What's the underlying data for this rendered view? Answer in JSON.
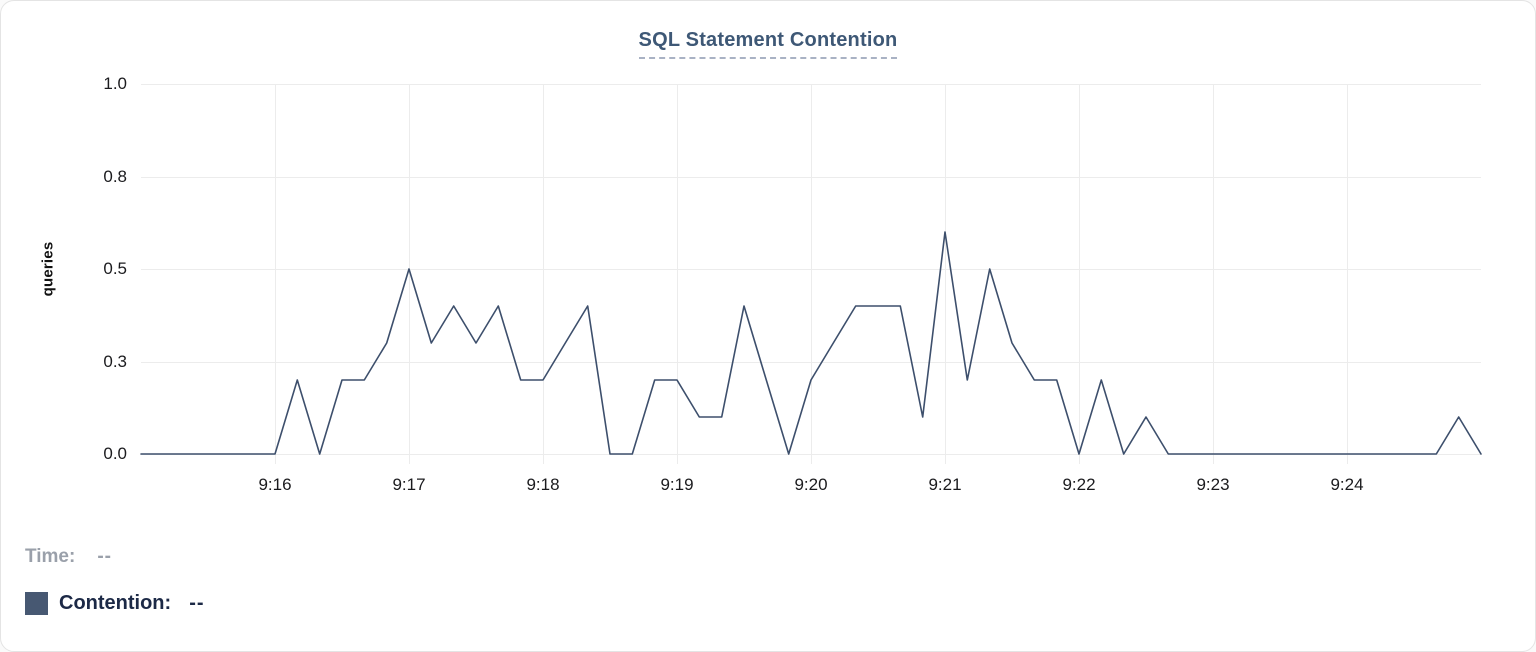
{
  "title": {
    "text": "SQL Statement Contention",
    "color": "#3e5876",
    "underline_color": "#a9b2c4"
  },
  "chart_data": {
    "type": "line",
    "title": "SQL Statement Contention",
    "xlabel": "",
    "ylabel": "queries",
    "ylim": [
      0,
      1.0
    ],
    "grid": true,
    "legend_position": "bottom-left",
    "line_color": "#3d4f6c",
    "grid_color": "#ececec",
    "start_time": "9:15:00",
    "end_time": "9:25:00",
    "interval_seconds": 10,
    "values": [
      0,
      0,
      0,
      0,
      0,
      0,
      0,
      0.2,
      0,
      0.2,
      0.2,
      0.3,
      0.5,
      0.3,
      0.4,
      0.3,
      0.4,
      0.2,
      0.2,
      0.3,
      0.4,
      0,
      0,
      0.2,
      0.2,
      0.1,
      0.1,
      0.4,
      0.2,
      0,
      0.2,
      0.3,
      0.4,
      0.4,
      0.4,
      0.1,
      0.6,
      0.2,
      0.5,
      0.3,
      0.2,
      0.2,
      0,
      0.2,
      0,
      0.1,
      0,
      0,
      0,
      0,
      0,
      0,
      0,
      0,
      0,
      0,
      0,
      0,
      0,
      0.1,
      0
    ],
    "y_ticks": [
      {
        "v": 0.0,
        "label": "0.0"
      },
      {
        "v": 0.25,
        "label": "0.3"
      },
      {
        "v": 0.5,
        "label": "0.5"
      },
      {
        "v": 0.75,
        "label": "0.8"
      },
      {
        "v": 1.0,
        "label": "1.0"
      }
    ],
    "x_ticks": [
      {
        "minute": 1,
        "label": "9:16"
      },
      {
        "minute": 2,
        "label": "9:17"
      },
      {
        "minute": 3,
        "label": "9:18"
      },
      {
        "minute": 4,
        "label": "9:19"
      },
      {
        "minute": 5,
        "label": "9:20"
      },
      {
        "minute": 6,
        "label": "9:21"
      },
      {
        "minute": 7,
        "label": "9:22"
      },
      {
        "minute": 8,
        "label": "9:23"
      },
      {
        "minute": 9,
        "label": "9:24"
      }
    ]
  },
  "legend": {
    "time_label": "Time:",
    "time_value": "--",
    "series": [
      {
        "label": "Contention:",
        "value": "--",
        "swatch_color": "#475872"
      }
    ]
  }
}
